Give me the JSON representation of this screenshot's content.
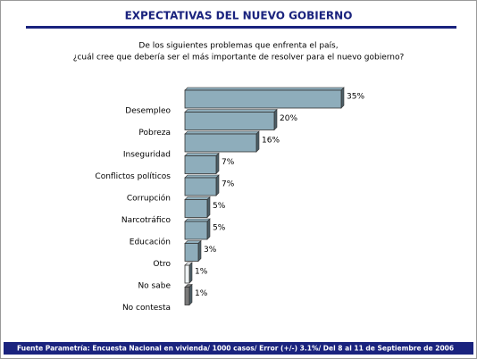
{
  "chart_data": {
    "type": "bar",
    "orientation": "horizontal",
    "title": "EXPECTATIVAS DEL NUEVO GOBIERNO",
    "subtitle": [
      "De los siguientes problemas que enfrenta el país,",
      "¿cuál cree que debería ser el más importante de resolver para el nuevo gobierno?"
    ],
    "categories": [
      "Desempleo",
      "Pobreza",
      "Inseguridad",
      "Conflictos políticos",
      "Corrupción",
      "Narcotráfico",
      "Educación",
      "Otro",
      "No sabe",
      "No contesta"
    ],
    "values": [
      35,
      20,
      16,
      7,
      7,
      5,
      5,
      3,
      1,
      1
    ],
    "value_labels": [
      "35%",
      "20%",
      "16%",
      "7%",
      "7%",
      "5%",
      "5%",
      "3%",
      "1%",
      "1%"
    ],
    "colors": [
      "#8eadbb",
      "#8eadbb",
      "#8eadbb",
      "#8eadbb",
      "#8eadbb",
      "#8eadbb",
      "#8eadbb",
      "#8eadbb",
      "#eef2f4",
      "#7a7a7a"
    ],
    "source": "Fuente Parametría: Encuesta Nacional en vivienda/ 1000 casos/ Error (+/-) 3.1%/ Del 8 al 11 de Septiembre de 2006"
  }
}
